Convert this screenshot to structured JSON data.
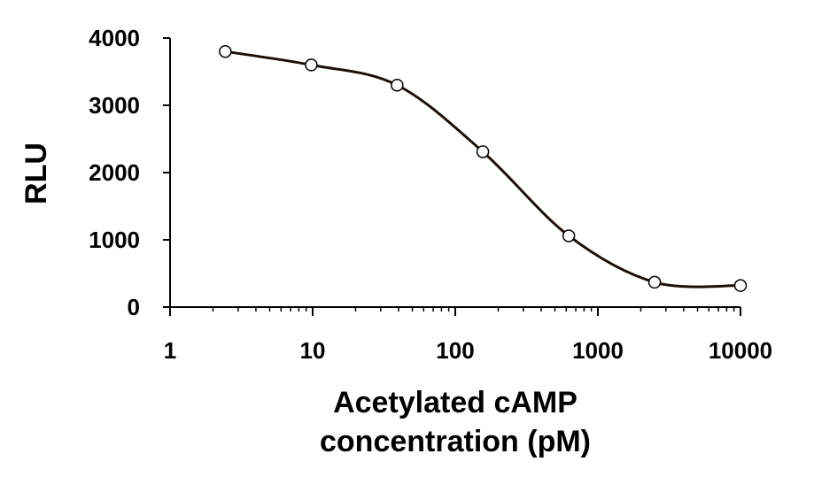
{
  "chart_data": {
    "type": "scatter",
    "xlabel": [
      "Acetylated cAMP",
      "concentration (pM)"
    ],
    "ylabel": "RLU",
    "xscale": "log",
    "xlim": [
      1,
      10000
    ],
    "ylim": [
      0,
      4000
    ],
    "x_ticks": [
      "1",
      "10",
      "100",
      "1000",
      "10000"
    ],
    "y_ticks": [
      "0",
      "1000",
      "2000",
      "3000",
      "4000"
    ],
    "series": [
      {
        "x": [
          2.44,
          9.77,
          39.1,
          156,
          625,
          2500,
          10000
        ],
        "y": [
          3800,
          3600,
          3300,
          2310,
          1060,
          370,
          320
        ],
        "marker": "open-circle",
        "line": "smooth"
      }
    ],
    "grid": false,
    "legend": "none"
  },
  "colors": {
    "line": "#1a1008",
    "marker_fill": "#ffffff",
    "marker_stroke": "#000000",
    "axis": "#000000",
    "text": "#000000"
  }
}
